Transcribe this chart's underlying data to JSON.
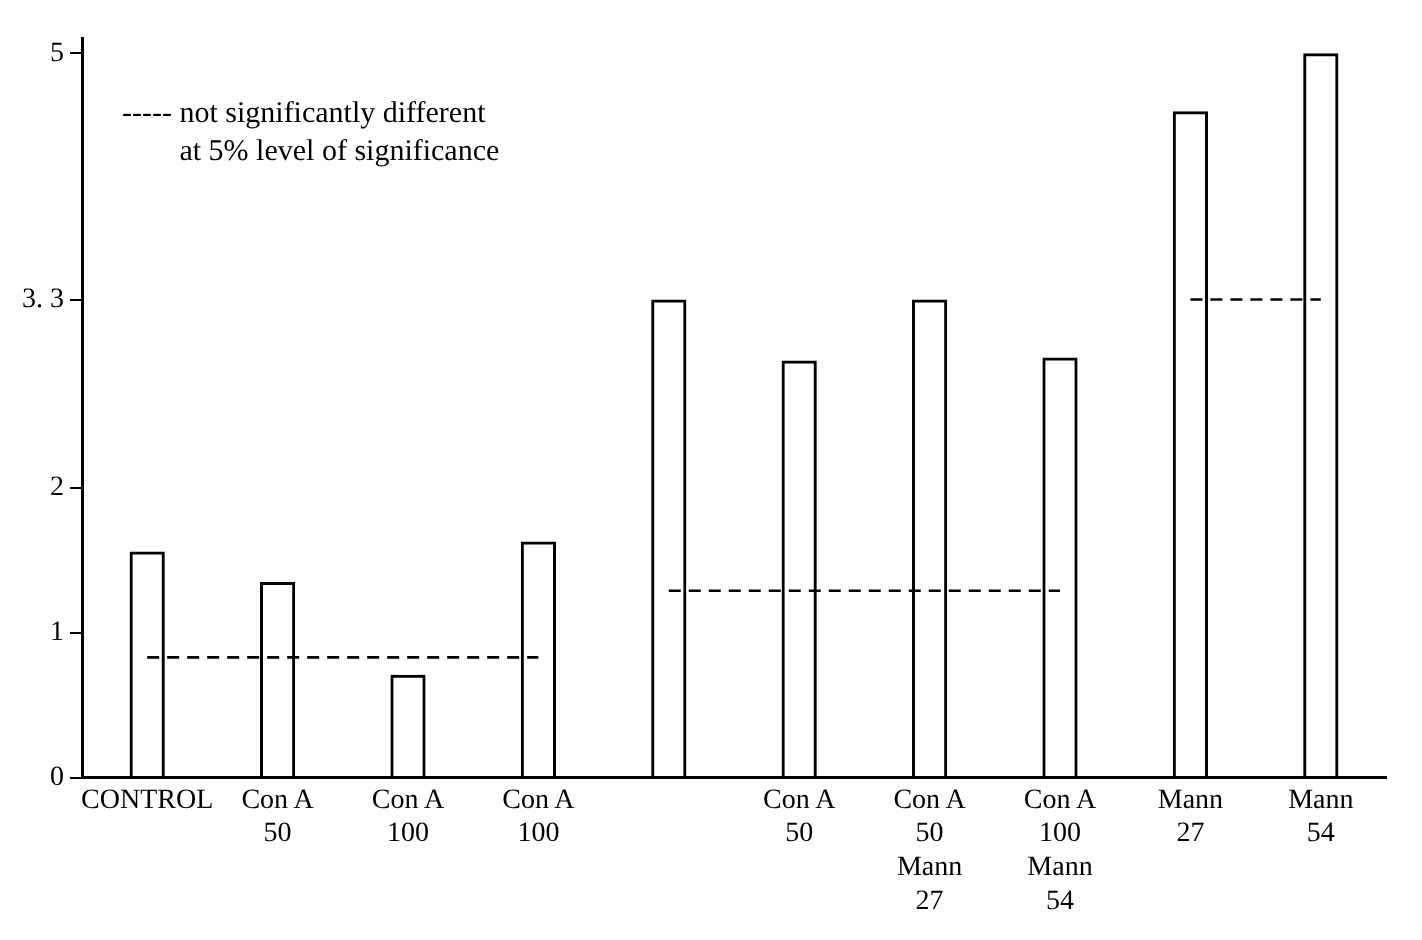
{
  "chart_data": {
    "type": "bar",
    "categories": [
      "CONTROL",
      "Con A\n50",
      "Con A\n100",
      "Con A\n100",
      null,
      "Con A\n50",
      "Con A\n50\nMann\n27",
      "Con A\n100\nMann\n54",
      "Mann\n27",
      "Mann\n54"
    ],
    "series": [
      {
        "color": "#000000",
        "values": [
          1.56,
          1.35,
          0.71,
          1.63,
          3.3,
          2.88,
          3.3,
          2.9,
          4.6,
          5.0
        ]
      },
      {
        "type": "line",
        "color": "#000000",
        "line_style": "dashed",
        "marker": "none",
        "values": [
          0.83,
          0.83,
          0.83,
          0.83,
          null,
          null,
          null,
          null,
          null,
          null
        ]
      },
      {
        "type": "line",
        "color": "#000000",
        "line_style": "dashed",
        "marker": "none",
        "values": [
          null,
          null,
          null,
          null,
          1.29,
          1.29,
          1.29,
          1.29,
          null,
          null
        ]
      },
      {
        "type": "line",
        "color": "#000000",
        "line_style": "dashed",
        "marker": "none",
        "values": [
          null,
          null,
          null,
          null,
          null,
          null,
          null,
          null,
          3.3,
          3.3
        ]
      }
    ],
    "ylim": [
      0,
      5.1
    ],
    "yticks": [
      0,
      1,
      2,
      {
        "value": 3.3,
        "label": "3. 3"
      },
      5
    ],
    "grid": false,
    "legend": false,
    "annotations": [
      "----- not significantly different\nat 5% level of significance"
    ]
  }
}
